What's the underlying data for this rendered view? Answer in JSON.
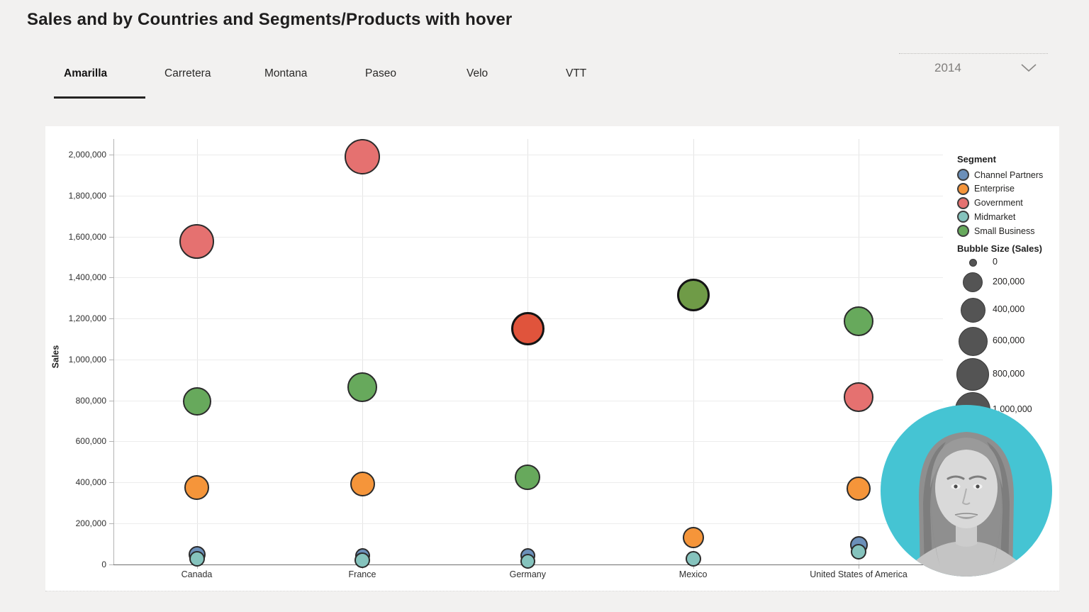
{
  "page": {
    "title": "Sales and by Countries and Segments/Products with hover"
  },
  "tabs": [
    {
      "label": "Amarilla",
      "active": true
    },
    {
      "label": "Carretera",
      "active": false
    },
    {
      "label": "Montana",
      "active": false
    },
    {
      "label": "Paseo",
      "active": false
    },
    {
      "label": "Velo",
      "active": false
    },
    {
      "label": "VTT",
      "active": false
    }
  ],
  "year_filter": {
    "value": "2014"
  },
  "chart_data": {
    "type": "scatter",
    "title": "",
    "xlabel": "",
    "ylabel": "Sales",
    "ylim": [
      0,
      2000000
    ],
    "ytick_step": 200000,
    "ytick_labels": [
      "0",
      "200,000",
      "400,000",
      "600,000",
      "800,000",
      "1,000,000",
      "1,200,000",
      "1,400,000",
      "1,600,000",
      "1,800,000",
      "2,000,000"
    ],
    "grid": true,
    "legend_position": "right",
    "categories": [
      "Canada",
      "France",
      "Germany",
      "Mexico",
      "United States of America"
    ],
    "series": [
      {
        "name": "Channel Partners",
        "color": "#6b8fb9",
        "values": [
          47000,
          40000,
          42000,
          null,
          95000
        ],
        "radii": [
          12,
          10.5,
          10.5,
          null,
          12.5
        ]
      },
      {
        "name": "Enterprise",
        "color": "#f5953a",
        "values": [
          375000,
          390000,
          null,
          130000,
          370000
        ],
        "radii": [
          17.5,
          17.5,
          null,
          15,
          17
        ]
      },
      {
        "name": "Government",
        "color": "#e57170",
        "values": [
          1575000,
          1990000,
          1150000,
          null,
          815000
        ],
        "radii": [
          24.5,
          25,
          23.5,
          null,
          21
        ]
      },
      {
        "name": "Midmarket",
        "color": "#85c3bd",
        "values": [
          26000,
          20000,
          15000,
          25000,
          60000
        ],
        "radii": [
          11,
          11,
          10.5,
          11,
          11
        ]
      },
      {
        "name": "Small Business",
        "color": "#67a95c",
        "values": [
          795000,
          865000,
          425000,
          1315000,
          1185000
        ],
        "radii": [
          20,
          21,
          18,
          23,
          21
        ]
      }
    ],
    "highlights": [
      {
        "country": "Germany",
        "segment": "Government",
        "fill": "#e0543c"
      },
      {
        "country": "Mexico",
        "segment": "Small Business",
        "fill": "#6f9b47"
      }
    ]
  },
  "legend": {
    "title": "Segment",
    "items": [
      {
        "label": "Channel Partners",
        "color": "#6b8fb9"
      },
      {
        "label": "Enterprise",
        "color": "#f5953a"
      },
      {
        "label": "Government",
        "color": "#e57170"
      },
      {
        "label": "Midmarket",
        "color": "#85c3bd"
      },
      {
        "label": "Small Business",
        "color": "#67a95c"
      }
    ]
  },
  "bubble_size_legend": {
    "title": "Bubble Size (Sales)",
    "items": [
      {
        "label": "0",
        "r": 5.5
      },
      {
        "label": "200,000",
        "r": 14
      },
      {
        "label": "400,000",
        "r": 17.5
      },
      {
        "label": "600,000",
        "r": 20.5
      },
      {
        "label": "800,000",
        "r": 23
      },
      {
        "label": "1,000,000",
        "r": 25
      }
    ]
  },
  "webcam": {
    "bg_color": "#45c4d3"
  },
  "colors": {
    "page_bg": "#f2f1f0",
    "card_bg": "#ffffff",
    "bubble_border": "#2b2b2b",
    "axis_line": "#6f6f6f"
  }
}
